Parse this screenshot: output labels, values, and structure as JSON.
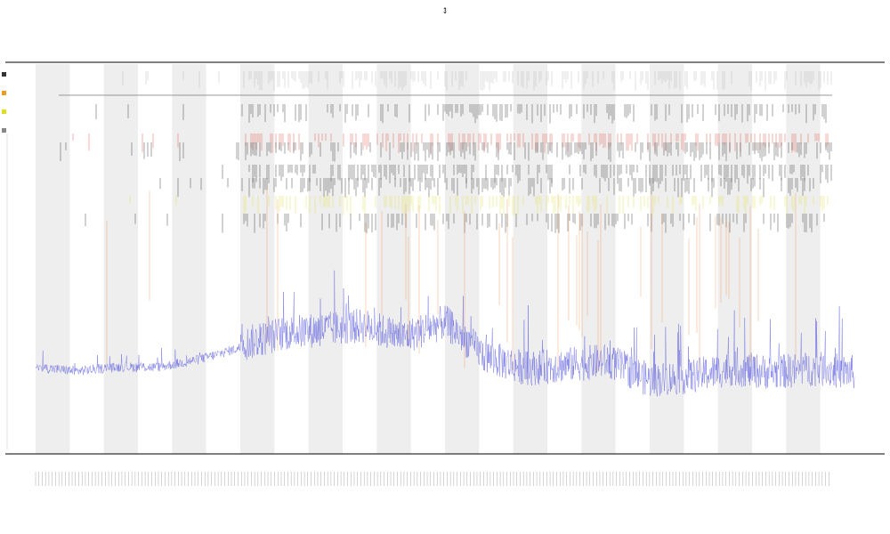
{
  "title": "3",
  "subtitle_1": "",
  "subtitle_2": "",
  "colors": {
    "background": "#ffffff",
    "band": "#eeeeee",
    "axis": "#333333",
    "trace": "#5555dd",
    "event_black": "#111111",
    "event_red": "#dd3322",
    "event_orange": "#ee7722",
    "event_yellow": "#dddd22",
    "event_gray": "#aaaaaa"
  },
  "legend": [
    {
      "label": "",
      "color": "#333333"
    },
    {
      "label": "",
      "color": "#ee9922"
    },
    {
      "label": "",
      "color": "#dddd22"
    },
    {
      "label": "",
      "color": "#888888"
    }
  ],
  "chart_data": {
    "type": "line",
    "title": "",
    "xlabel": "",
    "ylabel": "",
    "grid": false,
    "legend_position": "left",
    "band_count": 12,
    "xlim": [
      0,
      100
    ],
    "ylim": [
      0,
      100
    ],
    "x_tick_count": 240,
    "baseline": [
      [
        0,
        22
      ],
      [
        5,
        21
      ],
      [
        10,
        22
      ],
      [
        15,
        22
      ],
      [
        20,
        24
      ],
      [
        25,
        27
      ],
      [
        30,
        30
      ],
      [
        35,
        31
      ],
      [
        40,
        32
      ],
      [
        45,
        29
      ],
      [
        50,
        33
      ],
      [
        55,
        24
      ],
      [
        60,
        21
      ],
      [
        65,
        22
      ],
      [
        70,
        23
      ],
      [
        75,
        18
      ],
      [
        80,
        19
      ],
      [
        85,
        21
      ],
      [
        90,
        20
      ],
      [
        95,
        21
      ],
      [
        100,
        20
      ]
    ],
    "event_tracks": [
      {
        "name": "",
        "color": "#aaaaaa",
        "row": 0,
        "density": 0.55
      },
      {
        "name": "",
        "color": "#111111",
        "row": 1,
        "density": 0.35
      },
      {
        "name": "",
        "color": "#dd3322",
        "row": 2,
        "density": 0.4
      },
      {
        "name": "",
        "color": "#111111",
        "row": 3,
        "density": 0.5
      },
      {
        "name": "",
        "color": "#111111",
        "row": 4,
        "density": 0.45
      },
      {
        "name": "",
        "color": "#111111",
        "row": 5,
        "density": 0.4
      },
      {
        "name": "",
        "color": "#dddd22",
        "row": 6,
        "density": 0.4
      },
      {
        "name": "",
        "color": "#111111",
        "row": 7,
        "density": 0.35
      }
    ],
    "long_event_color": "#ee7722"
  }
}
